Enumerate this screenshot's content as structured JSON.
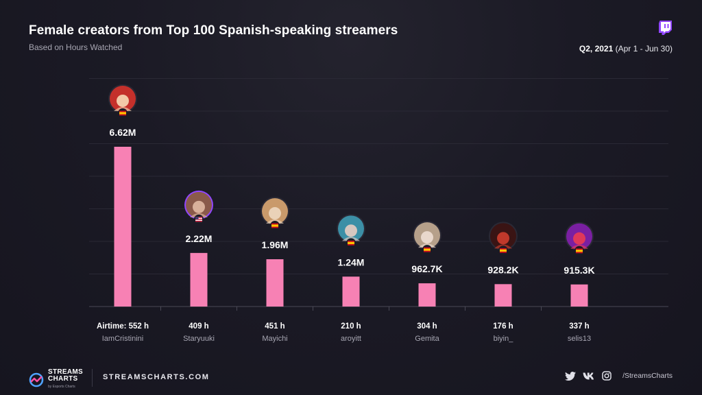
{
  "header": {
    "title": "Female creators from Top 100 Spanish-speaking streamers",
    "subtitle": "Based on Hours Watched",
    "period_bold": "Q2, 2021",
    "period_rest": "(Apr 1 - Jun 30)"
  },
  "chart_data": {
    "type": "bar",
    "title": "Female creators from Top 100 Spanish-speaking streamers",
    "subtitle": "Based on Hours Watched",
    "metric": "Hours Watched",
    "categories": [
      "IamCristinini",
      "Staryuuki",
      "Mayichi",
      "aroyitt",
      "Gemita",
      "biyin_",
      "selis13"
    ],
    "values": [
      6620000,
      2220000,
      1960000,
      1240000,
      962700,
      928200,
      915300
    ],
    "value_labels": [
      "6.62M",
      "2.22M",
      "1.96M",
      "1.24M",
      "962.7K",
      "928.2K",
      "915.3K"
    ],
    "airtime_labels": [
      "Airtime: 552 h",
      "409 h",
      "451 h",
      "210 h",
      "304 h",
      "176 h",
      "337 h"
    ],
    "airtime_hours": [
      552,
      409,
      451,
      210,
      304,
      176,
      337
    ],
    "flags": [
      "spain",
      "usa",
      "spain",
      "spain",
      "spain",
      "spain",
      "spain"
    ],
    "ylim": [
      0,
      6620000
    ],
    "grid": true,
    "bar_color": "#f781b4",
    "xlabel": "",
    "ylabel": ""
  },
  "avatar_colors": [
    [
      "#c4302b",
      "#f3c9a8"
    ],
    [
      "#8a5a4a",
      "#d9b09a"
    ],
    [
      "#c99a6b",
      "#ead2b8"
    ],
    [
      "#3c8fa6",
      "#d7c7c0"
    ],
    [
      "#b6a08a",
      "#e9d8cc"
    ],
    [
      "#3a1414",
      "#c0392b"
    ],
    [
      "#7a1fa2",
      "#e0385a"
    ]
  ],
  "footer": {
    "logo_line1": "STREAMS",
    "logo_line2": "CHARTS",
    "logo_line3": "by Esports Charts",
    "site": "STREAMSCHARTS.COM",
    "handle": "/StreamsCharts"
  },
  "colors": {
    "accent_pink": "#f781b4",
    "twitch_purple": "#9146ff",
    "muted_text": "#a8a7b3"
  }
}
